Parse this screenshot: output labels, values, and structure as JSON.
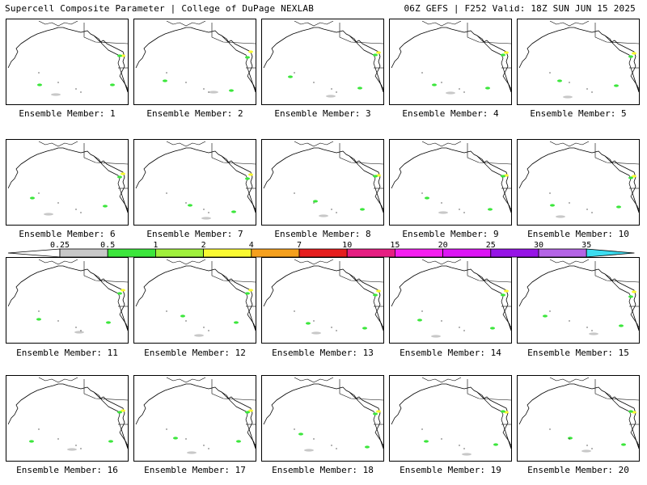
{
  "header": {
    "left": "Supercell Composite Parameter | College of DuPage NEXLAB",
    "right": "06Z GEFS | F252 Valid: 18Z SUN JUN 15 2025"
  },
  "members": [
    {
      "caption": "Ensemble Member: 1"
    },
    {
      "caption": "Ensemble Member: 2"
    },
    {
      "caption": "Ensemble Member: 3"
    },
    {
      "caption": "Ensemble Member: 4"
    },
    {
      "caption": "Ensemble Member: 5"
    },
    {
      "caption": "Ensemble Member: 6"
    },
    {
      "caption": "Ensemble Member: 7"
    },
    {
      "caption": "Ensemble Member: 8"
    },
    {
      "caption": "Ensemble Member: 9"
    },
    {
      "caption": "Ensemble Member: 10"
    },
    {
      "caption": "Ensemble Member: 11"
    },
    {
      "caption": "Ensemble Member: 12"
    },
    {
      "caption": "Ensemble Member: 13"
    },
    {
      "caption": "Ensemble Member: 14"
    },
    {
      "caption": "Ensemble Member: 15"
    },
    {
      "caption": "Ensemble Member: 16"
    },
    {
      "caption": "Ensemble Member: 17"
    },
    {
      "caption": "Ensemble Member: 18"
    },
    {
      "caption": "Ensemble Member: 19"
    },
    {
      "caption": "Ensemble Member: 20"
    }
  ],
  "colorbar": {
    "ticks": [
      "0.25",
      "0.5",
      "1",
      "2",
      "4",
      "7",
      "10",
      "15",
      "20",
      "25",
      "30",
      "35"
    ],
    "colors": [
      "#c8c8c8",
      "#3ce63c",
      "#a0f03c",
      "#fafa32",
      "#f5a01e",
      "#e61e1e",
      "#e61e82",
      "#f51ef0",
      "#dc14f5",
      "#9614e6",
      "#b464e6",
      "#3cdcf0"
    ]
  }
}
